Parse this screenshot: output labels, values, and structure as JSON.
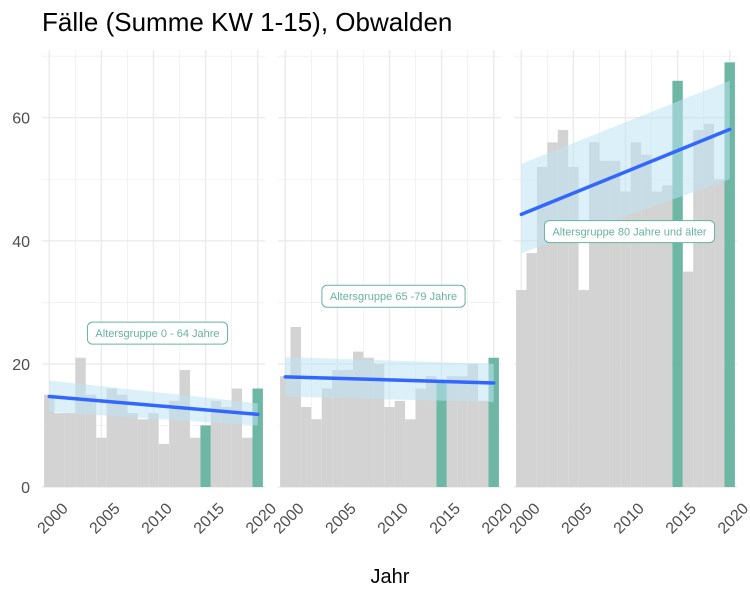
{
  "chart_data": {
    "type": "bar",
    "title": "Fälle (Summe KW 1-15), Obwalden",
    "xlabel": "Jahr",
    "ylabel": "",
    "x": [
      2000,
      2001,
      2002,
      2003,
      2004,
      2005,
      2006,
      2007,
      2008,
      2009,
      2010,
      2011,
      2012,
      2013,
      2014,
      2015,
      2016,
      2017,
      2018,
      2019,
      2020
    ],
    "xticks": [
      "2000",
      "2005",
      "2010",
      "2015",
      "2020"
    ],
    "yticks": [
      "0",
      "20",
      "40",
      "60"
    ],
    "ylim": [
      0,
      71
    ],
    "xlim": [
      1999.3,
      2020.7
    ],
    "grid": true,
    "colors": {
      "bar": "#d3d3d3",
      "highlight": "#66b3a0",
      "trend": "#3366ff",
      "ribbon": "#bde3f2",
      "grid": "#ebebeb"
    },
    "highlight_years": [
      2015,
      2020
    ],
    "facets": [
      {
        "label": "Altersgruppe 0 - 64 Jahre",
        "values": [
          15,
          12,
          12,
          21,
          15,
          8,
          16,
          15,
          12,
          11,
          12,
          7,
          14,
          19,
          8,
          10,
          14,
          13,
          16,
          8,
          16
        ],
        "trend": [
          14.7,
          11.8
        ],
        "band_low": [
          12.2,
          10.0
        ],
        "band_high": [
          17.3,
          13.6
        ],
        "label_value": 25
      },
      {
        "label": "Altersgruppe 65 -79 Jahre",
        "values": [
          18,
          26,
          13,
          11,
          16,
          19,
          19,
          22,
          21,
          20,
          13,
          14,
          11,
          16,
          18,
          17,
          18,
          18,
          20,
          14,
          21
        ],
        "trend": [
          17.9,
          16.9
        ],
        "band_low": [
          14.7,
          13.8
        ],
        "band_high": [
          21.1,
          20.0
        ],
        "label_value": 31
      },
      {
        "label": "Altersgruppe 80 Jahre und älter",
        "values": [
          32,
          38,
          52,
          56,
          58,
          52,
          32,
          56,
          53,
          53,
          48,
          56,
          54,
          48,
          49,
          66,
          35,
          58,
          59,
          50,
          69
        ],
        "trend": [
          44.3,
          58.1
        ],
        "band_low": [
          38.0,
          50.0
        ],
        "band_high": [
          52.5,
          66.0
        ],
        "label_value": 41.5
      }
    ]
  }
}
